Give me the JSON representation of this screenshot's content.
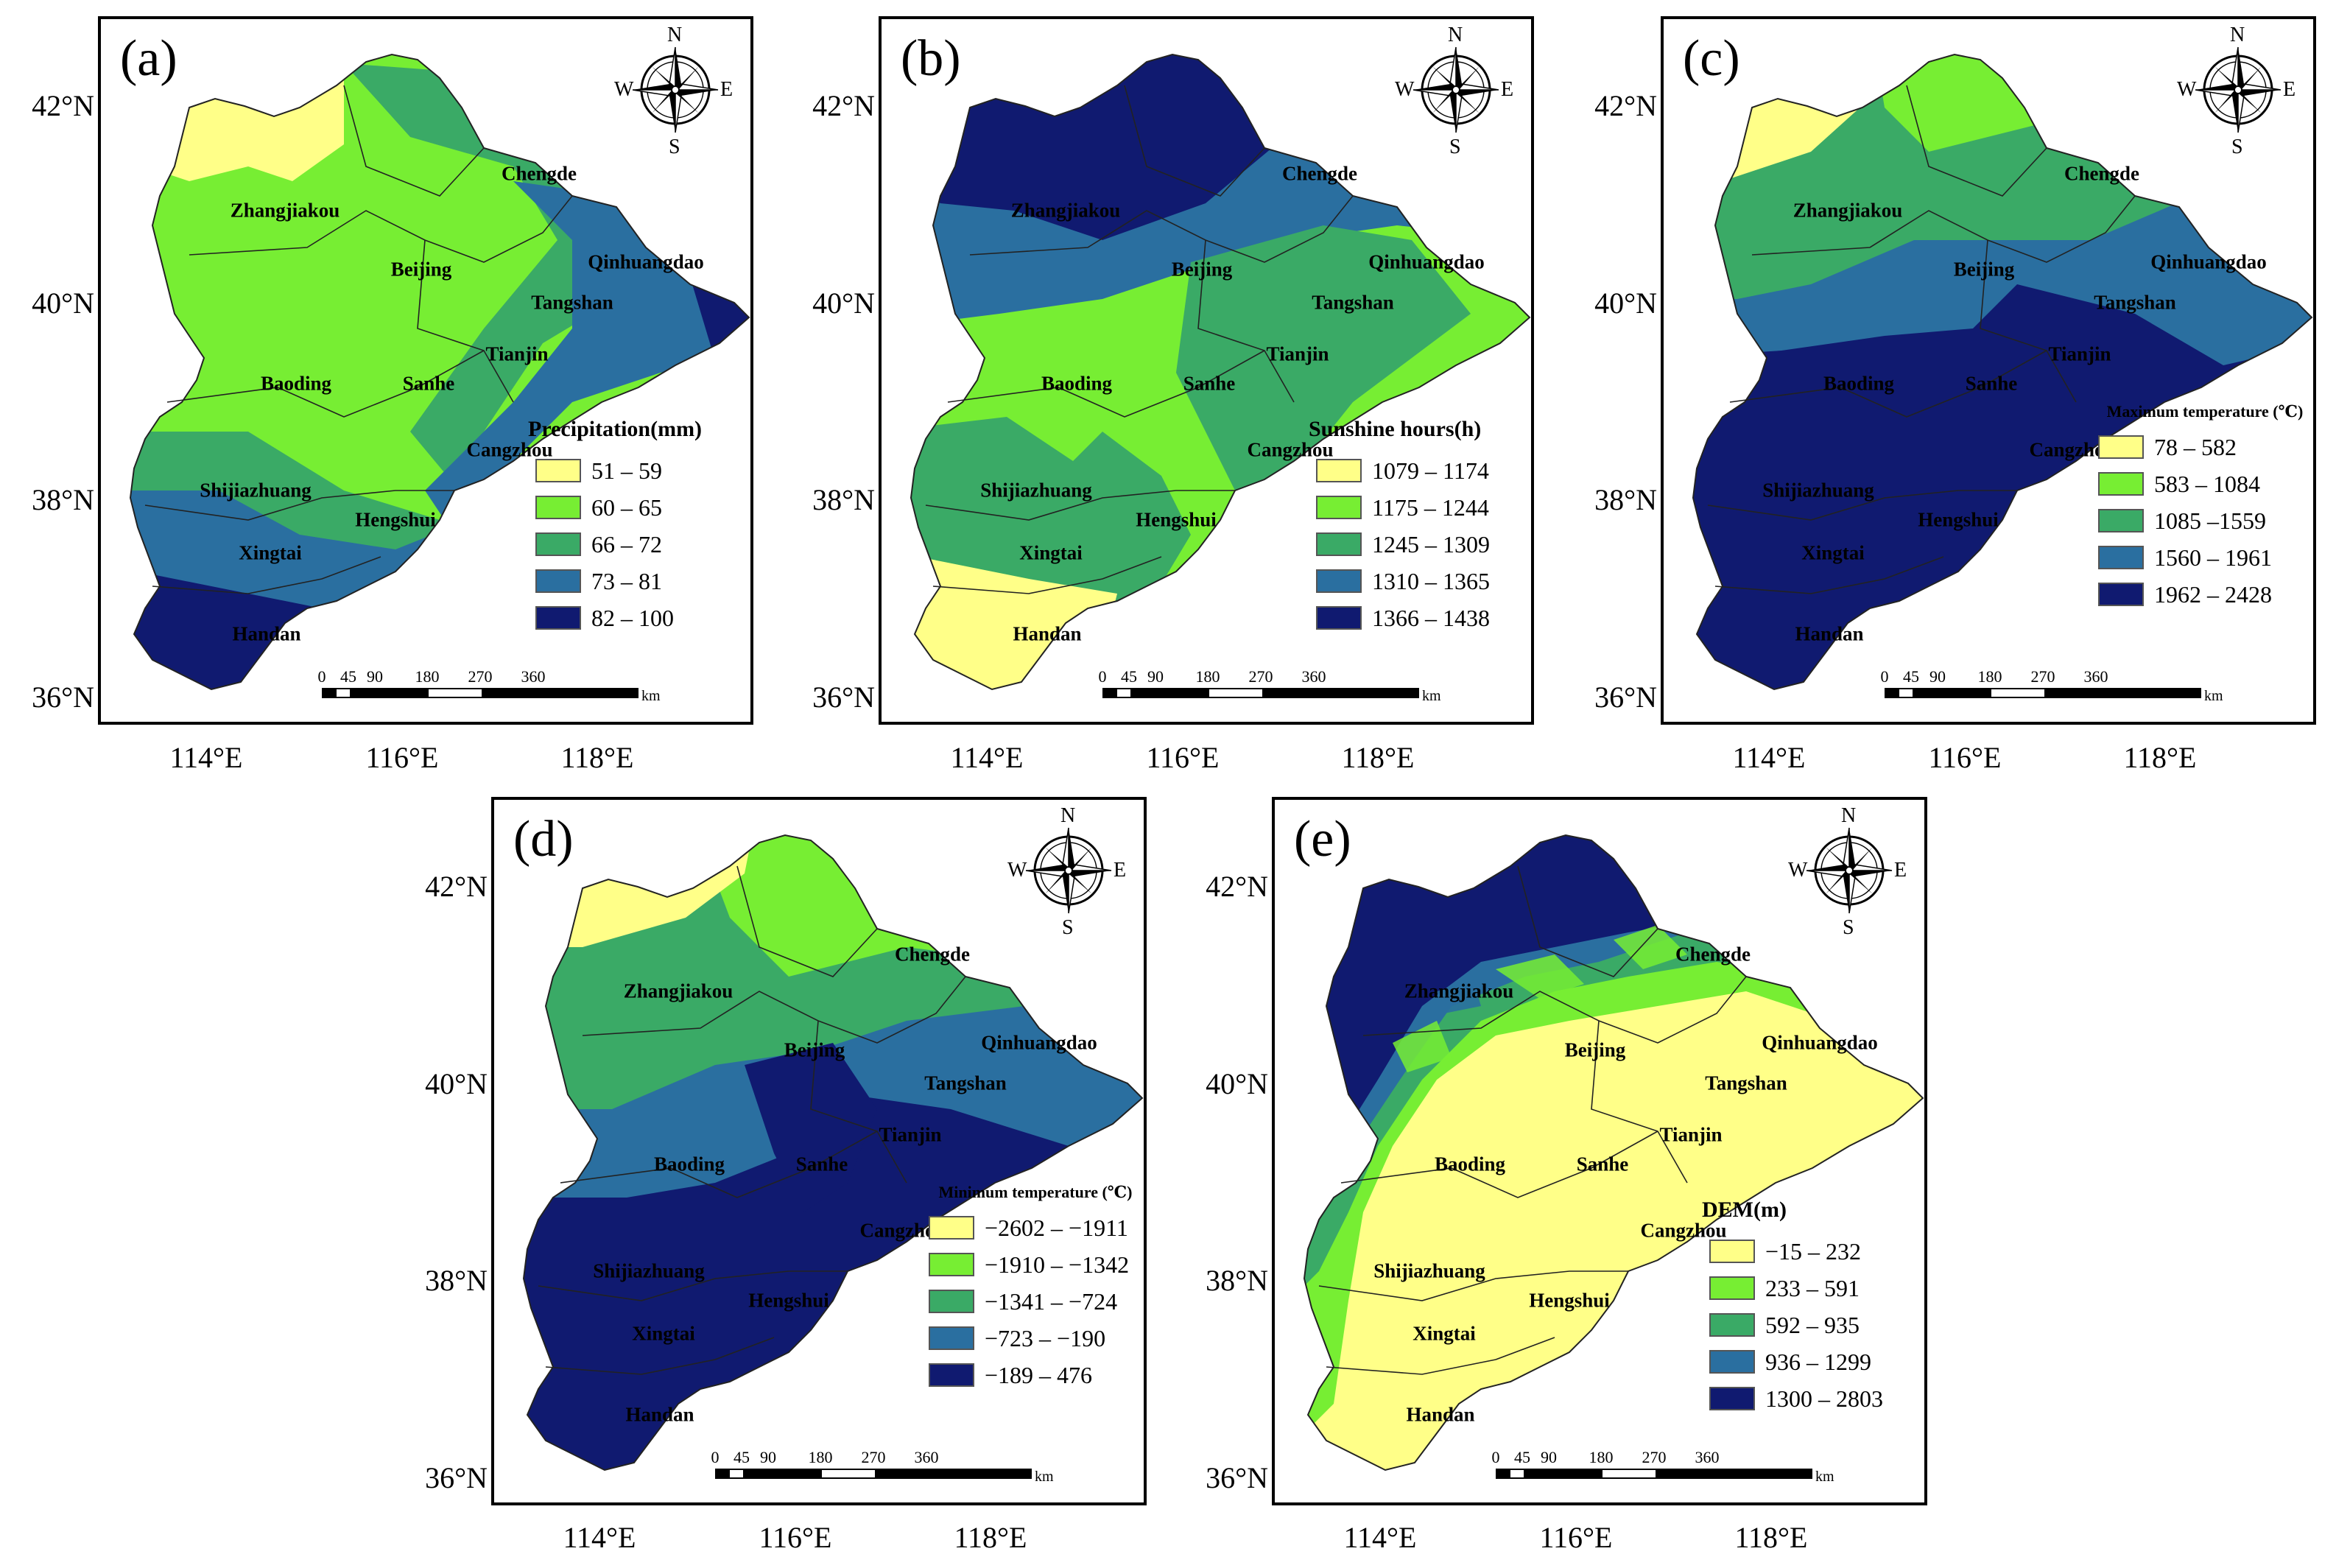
{
  "axis": {
    "lat_labels": [
      "42°N",
      "40°N",
      "38°N",
      "36°N"
    ],
    "lon_labels": [
      "114°E",
      "116°E",
      "118°E"
    ]
  },
  "compass": {
    "n": "N",
    "s": "S",
    "e": "E",
    "w": "W"
  },
  "scalebar": {
    "ticks": [
      "0",
      "45",
      "90",
      "180",
      "270",
      "360"
    ],
    "unit": "km"
  },
  "cities": [
    "Chengde",
    "Zhangjiakou",
    "Beijing",
    "Qinhuangdao",
    "Tangshan",
    "Tianjin",
    "Baoding",
    "Sanhe",
    "Cangzhou",
    "Shijiazhuang",
    "Hengshui",
    "Xingtai",
    "Handan"
  ],
  "colors": {
    "c1": "#ffff88",
    "c2": "#77ee33",
    "c3": "#3aaa66",
    "c4": "#2a6fa0",
    "c5": "#101a70"
  },
  "panels": [
    {
      "label": "(a)",
      "legend_title": "Precipitation(mm)",
      "legend": [
        "51 – 59",
        "60 – 65",
        "66 – 72",
        "73 – 81",
        "82 – 100"
      ]
    },
    {
      "label": "(b)",
      "legend_title": "Sunshine hours(h)",
      "legend": [
        "1079 – 1174",
        "1175 – 1244",
        "1245 – 1309",
        "1310 – 1365",
        "1366 – 1438"
      ]
    },
    {
      "label": "(c)",
      "legend_title": "Maximum temperature (℃)",
      "legend": [
        "78 – 582",
        "583 – 1084",
        "1085 –1559",
        "1560 – 1961",
        "1962 – 2428"
      ]
    },
    {
      "label": "(d)",
      "legend_title": "Minimum temperature (℃)",
      "legend": [
        "−2602 – −1911",
        "−1910 – −1342",
        "−1341 – −724",
        "−723 – −190",
        "−189 – 476"
      ]
    },
    {
      "label": "(e)",
      "legend_title": "DEM(m)",
      "legend": [
        "−15 – 232",
        "233 – 591",
        "592 – 935",
        "936 – 1299",
        "1300 – 2803"
      ]
    }
  ]
}
